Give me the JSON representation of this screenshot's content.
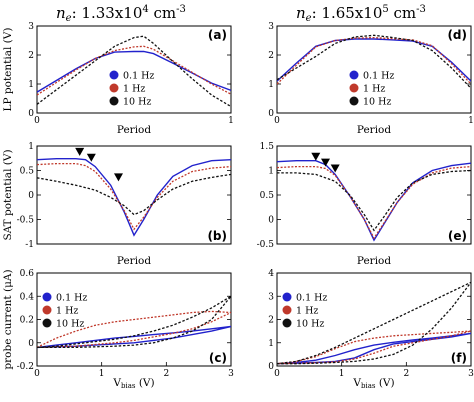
{
  "colors": {
    "blue": "#2222cc",
    "red": "#c0392b",
    "black": "#111111"
  },
  "columns": [
    {
      "ne_symbol": "n",
      "ne_sub": "e",
      "value": ": 1.33x10",
      "exp": "4",
      "unit": " cm",
      "unit_exp": "-3"
    },
    {
      "ne_symbol": "n",
      "ne_sub": "e",
      "value": ": 1.65x10",
      "exp": "5",
      "unit": " cm",
      "unit_exp": "-3"
    }
  ],
  "chart_data": [
    {
      "panel": "(a)",
      "type": "line",
      "ylabel": "LP potential (V)",
      "xlabel": "Period",
      "xlim": [
        0,
        1
      ],
      "ylim": [
        0,
        3
      ],
      "xticks": [
        "0",
        "1"
      ],
      "yticks": [
        "0",
        "1",
        "2",
        "3"
      ],
      "legend": {
        "placement": "lower-center",
        "entries": [
          "0.1 Hz",
          "1 Hz",
          "10 Hz"
        ]
      },
      "series": [
        {
          "name": "0.1 Hz",
          "color": "blue",
          "dash": false,
          "x": [
            0,
            0.1,
            0.2,
            0.3,
            0.4,
            0.5,
            0.55,
            0.6,
            0.7,
            0.8,
            0.9,
            1.0
          ],
          "y": [
            0.72,
            1.12,
            1.52,
            1.88,
            2.1,
            2.12,
            2.12,
            2.05,
            1.72,
            1.38,
            1.03,
            0.78
          ]
        },
        {
          "name": "1 Hz",
          "color": "red",
          "dash": true,
          "x": [
            0,
            0.1,
            0.2,
            0.3,
            0.4,
            0.5,
            0.55,
            0.6,
            0.7,
            0.8,
            0.9,
            1.0
          ],
          "y": [
            0.62,
            1.05,
            1.48,
            1.88,
            2.15,
            2.28,
            2.3,
            2.2,
            1.8,
            1.4,
            1.0,
            0.65
          ]
        },
        {
          "name": "10 Hz",
          "color": "black",
          "dash": true,
          "x": [
            0,
            0.1,
            0.2,
            0.3,
            0.4,
            0.5,
            0.55,
            0.6,
            0.7,
            0.8,
            0.9,
            1.0
          ],
          "y": [
            0.3,
            0.8,
            1.3,
            1.8,
            2.3,
            2.6,
            2.65,
            2.4,
            1.78,
            1.18,
            0.62,
            0.22
          ]
        }
      ]
    },
    {
      "panel": "(d)",
      "type": "line",
      "ylabel": "",
      "xlabel": "Period",
      "xlim": [
        0,
        1
      ],
      "ylim": [
        0,
        3
      ],
      "xticks": [
        "0",
        "1"
      ],
      "yticks": [
        "0",
        "1",
        "2",
        "3"
      ],
      "legend": {
        "placement": "lower-center",
        "entries": [
          "0.1 Hz",
          "1 Hz",
          "10 Hz"
        ]
      },
      "series": [
        {
          "name": "0.1 Hz",
          "color": "blue",
          "dash": false,
          "x": [
            0,
            0.1,
            0.2,
            0.3,
            0.4,
            0.5,
            0.6,
            0.7,
            0.8,
            0.9,
            1.0
          ],
          "y": [
            1.1,
            1.72,
            2.3,
            2.5,
            2.55,
            2.55,
            2.52,
            2.48,
            2.3,
            1.75,
            1.1
          ]
        },
        {
          "name": "1 Hz",
          "color": "red",
          "dash": true,
          "x": [
            0,
            0.1,
            0.2,
            0.3,
            0.4,
            0.5,
            0.6,
            0.7,
            0.8,
            0.9,
            1.0
          ],
          "y": [
            1.0,
            1.65,
            2.28,
            2.5,
            2.58,
            2.6,
            2.56,
            2.52,
            2.32,
            1.7,
            1.0
          ]
        },
        {
          "name": "10 Hz",
          "color": "black",
          "dash": true,
          "x": [
            0,
            0.1,
            0.2,
            0.3,
            0.4,
            0.5,
            0.6,
            0.7,
            0.8,
            0.9,
            1.0
          ],
          "y": [
            1.15,
            1.55,
            1.95,
            2.4,
            2.62,
            2.68,
            2.6,
            2.5,
            2.15,
            1.55,
            0.85
          ]
        }
      ]
    },
    {
      "panel": "(b)",
      "type": "line",
      "ylabel": "SAT potential (V)",
      "xlabel": "Period",
      "xlim": [
        0,
        1
      ],
      "ylim": [
        -1,
        1
      ],
      "xticks": [],
      "yticks": [
        "-1",
        "-0.5",
        "0",
        "0.5",
        "1"
      ],
      "markers": [
        {
          "x": 0.22,
          "y": 0.88
        },
        {
          "x": 0.28,
          "y": 0.76
        },
        {
          "x": 0.42,
          "y": 0.36
        }
      ],
      "series": [
        {
          "name": "0.1 Hz",
          "color": "blue",
          "dash": false,
          "x": [
            0,
            0.1,
            0.2,
            0.25,
            0.3,
            0.38,
            0.45,
            0.5,
            0.55,
            0.62,
            0.7,
            0.8,
            0.9,
            1.0
          ],
          "y": [
            0.72,
            0.74,
            0.74,
            0.72,
            0.58,
            0.2,
            -0.35,
            -0.82,
            -0.5,
            0.0,
            0.38,
            0.6,
            0.7,
            0.72
          ]
        },
        {
          "name": "1 Hz",
          "color": "red",
          "dash": true,
          "x": [
            0,
            0.1,
            0.2,
            0.25,
            0.3,
            0.38,
            0.45,
            0.5,
            0.55,
            0.62,
            0.7,
            0.8,
            0.9,
            1.0
          ],
          "y": [
            0.62,
            0.64,
            0.64,
            0.6,
            0.48,
            0.12,
            -0.32,
            -0.7,
            -0.45,
            -0.05,
            0.28,
            0.48,
            0.55,
            0.58
          ]
        },
        {
          "name": "10 Hz",
          "color": "black",
          "dash": true,
          "x": [
            0,
            0.1,
            0.2,
            0.3,
            0.38,
            0.45,
            0.5,
            0.55,
            0.62,
            0.7,
            0.8,
            0.9,
            1.0
          ],
          "y": [
            0.35,
            0.28,
            0.2,
            0.1,
            -0.05,
            -0.22,
            -0.4,
            -0.32,
            -0.1,
            0.12,
            0.28,
            0.36,
            0.42
          ]
        }
      ]
    },
    {
      "panel": "(e)",
      "type": "line",
      "ylabel": "",
      "xlabel": "Period",
      "xlim": [
        0,
        1
      ],
      "ylim": [
        -0.5,
        1.5
      ],
      "xticks": [],
      "yticks": [
        "-0.5",
        "0",
        "0.5",
        "1",
        "1.5"
      ],
      "markers": [
        {
          "x": 0.2,
          "y": 1.28
        },
        {
          "x": 0.25,
          "y": 1.16
        },
        {
          "x": 0.3,
          "y": 1.04
        }
      ],
      "series": [
        {
          "name": "0.1 Hz",
          "color": "blue",
          "dash": false,
          "x": [
            0,
            0.1,
            0.2,
            0.25,
            0.3,
            0.38,
            0.45,
            0.5,
            0.55,
            0.62,
            0.7,
            0.8,
            0.9,
            1.0
          ],
          "y": [
            1.18,
            1.2,
            1.2,
            1.12,
            0.92,
            0.45,
            0.0,
            -0.42,
            -0.1,
            0.35,
            0.75,
            1.0,
            1.1,
            1.15
          ]
        },
        {
          "name": "1 Hz",
          "color": "red",
          "dash": true,
          "x": [
            0,
            0.1,
            0.2,
            0.25,
            0.3,
            0.38,
            0.45,
            0.5,
            0.55,
            0.62,
            0.7,
            0.8,
            0.9,
            1.0
          ],
          "y": [
            1.06,
            1.08,
            1.08,
            1.04,
            0.9,
            0.45,
            0.0,
            -0.38,
            -0.08,
            0.35,
            0.72,
            0.95,
            1.05,
            1.08
          ]
        },
        {
          "name": "10 Hz",
          "color": "black",
          "dash": true,
          "x": [
            0,
            0.1,
            0.2,
            0.3,
            0.38,
            0.45,
            0.5,
            0.55,
            0.62,
            0.7,
            0.8,
            0.9,
            1.0
          ],
          "y": [
            0.95,
            0.95,
            0.92,
            0.78,
            0.48,
            0.1,
            -0.22,
            0.05,
            0.45,
            0.75,
            0.92,
            0.98,
            1.0
          ]
        }
      ]
    },
    {
      "panel": "(c)",
      "type": "line",
      "ylabel": "probe current (μA)",
      "xlabel": "V",
      "xlabel_sub": "bias",
      "xlabel_unit": " (V)",
      "xlim": [
        0,
        3
      ],
      "ylim": [
        -0.2,
        0.6
      ],
      "xticks": [
        "0",
        "1",
        "2",
        "3"
      ],
      "yticks": [
        "-0.2",
        "0",
        "0.2",
        "0.4",
        "0.6"
      ],
      "legend": {
        "placement": "upper-left",
        "entries": [
          "0.1 Hz",
          "1 Hz",
          "10 Hz"
        ]
      },
      "series": [
        {
          "name": "0.1 Hz",
          "color": "blue",
          "dash": false,
          "x": [
            0,
            0.3,
            0.6,
            0.9,
            1.2,
            1.5,
            1.8,
            2.1,
            2.4,
            2.7,
            3.0,
            2.7,
            2.4,
            2.1,
            1.8,
            1.5,
            1.2,
            0.9,
            0.6,
            0.3,
            0.0
          ],
          "y": [
            -0.04,
            -0.035,
            -0.03,
            -0.02,
            -0.01,
            0.0,
            0.02,
            0.04,
            0.07,
            0.1,
            0.14,
            0.12,
            0.1,
            0.085,
            0.07,
            0.055,
            0.04,
            0.02,
            0.0,
            -0.02,
            -0.04
          ]
        },
        {
          "name": "1 Hz",
          "color": "red",
          "dash": true,
          "x": [
            0,
            0.3,
            0.6,
            0.9,
            1.2,
            1.5,
            1.8,
            2.1,
            2.4,
            2.7,
            3.0,
            2.7,
            2.4,
            2.1,
            1.8,
            1.5,
            1.2,
            0.9,
            0.6,
            0.3,
            0.0
          ],
          "y": [
            -0.04,
            -0.035,
            -0.03,
            -0.015,
            0.0,
            0.02,
            0.05,
            0.08,
            0.12,
            0.18,
            0.26,
            0.27,
            0.26,
            0.24,
            0.22,
            0.2,
            0.18,
            0.15,
            0.1,
            0.04,
            -0.04
          ]
        },
        {
          "name": "10 Hz",
          "color": "black",
          "dash": true,
          "x": [
            0,
            0.3,
            0.6,
            0.9,
            1.2,
            1.5,
            1.8,
            2.1,
            2.4,
            2.7,
            3.0,
            2.7,
            2.4,
            2.1,
            1.8,
            1.5,
            1.2,
            0.9,
            0.6,
            0.3,
            0.0
          ],
          "y": [
            -0.04,
            -0.04,
            -0.04,
            -0.035,
            -0.03,
            -0.02,
            0.0,
            0.04,
            0.1,
            0.2,
            0.4,
            0.3,
            0.22,
            0.15,
            0.1,
            0.06,
            0.03,
            0.01,
            -0.01,
            -0.03,
            -0.04
          ]
        }
      ]
    },
    {
      "panel": "(f)",
      "type": "line",
      "ylabel": "",
      "xlabel": "V",
      "xlabel_sub": "bias",
      "xlabel_unit": " (V)",
      "xlim": [
        0,
        3
      ],
      "ylim": [
        0,
        4
      ],
      "xticks": [
        "0",
        "1",
        "2",
        "3"
      ],
      "yticks": [
        "0",
        "1",
        "2",
        "3",
        "4"
      ],
      "legend": {
        "placement": "upper-left",
        "entries": [
          "0.1 Hz",
          "1 Hz",
          "10 Hz"
        ]
      },
      "series": [
        {
          "name": "0.1 Hz",
          "color": "blue",
          "dash": false,
          "x": [
            0,
            0.3,
            0.6,
            0.9,
            1.2,
            1.5,
            1.8,
            2.1,
            2.4,
            2.7,
            3.0,
            2.7,
            2.4,
            2.1,
            1.8,
            1.5,
            1.2,
            0.9,
            0.6,
            0.3,
            0.0
          ],
          "y": [
            0.1,
            0.12,
            0.15,
            0.2,
            0.35,
            0.7,
            0.95,
            1.05,
            1.15,
            1.25,
            1.4,
            1.3,
            1.2,
            1.12,
            1.02,
            0.9,
            0.7,
            0.45,
            0.25,
            0.15,
            0.1
          ]
        },
        {
          "name": "1 Hz",
          "color": "red",
          "dash": true,
          "x": [
            0,
            0.3,
            0.6,
            0.9,
            1.2,
            1.5,
            1.8,
            2.1,
            2.4,
            2.7,
            3.0,
            2.7,
            2.4,
            2.1,
            1.8,
            1.5,
            1.2,
            0.9,
            0.6,
            0.3,
            0.0
          ],
          "y": [
            0.1,
            0.12,
            0.14,
            0.18,
            0.3,
            0.55,
            0.85,
            1.0,
            1.15,
            1.3,
            1.5,
            1.45,
            1.4,
            1.35,
            1.3,
            1.2,
            1.05,
            0.75,
            0.4,
            0.2,
            0.1
          ]
        },
        {
          "name": "10 Hz",
          "color": "black",
          "dash": true,
          "x": [
            0,
            0.3,
            0.6,
            0.9,
            1.2,
            1.5,
            1.8,
            2.1,
            2.4,
            2.7,
            3.0,
            2.7,
            2.4,
            2.1,
            1.8,
            1.5,
            1.2,
            0.9,
            0.6,
            0.3,
            0.0
          ],
          "y": [
            0.1,
            0.1,
            0.12,
            0.15,
            0.2,
            0.3,
            0.5,
            0.9,
            1.6,
            2.5,
            3.6,
            3.2,
            2.8,
            2.4,
            2.0,
            1.6,
            1.2,
            0.8,
            0.45,
            0.2,
            0.1
          ]
        }
      ]
    }
  ]
}
